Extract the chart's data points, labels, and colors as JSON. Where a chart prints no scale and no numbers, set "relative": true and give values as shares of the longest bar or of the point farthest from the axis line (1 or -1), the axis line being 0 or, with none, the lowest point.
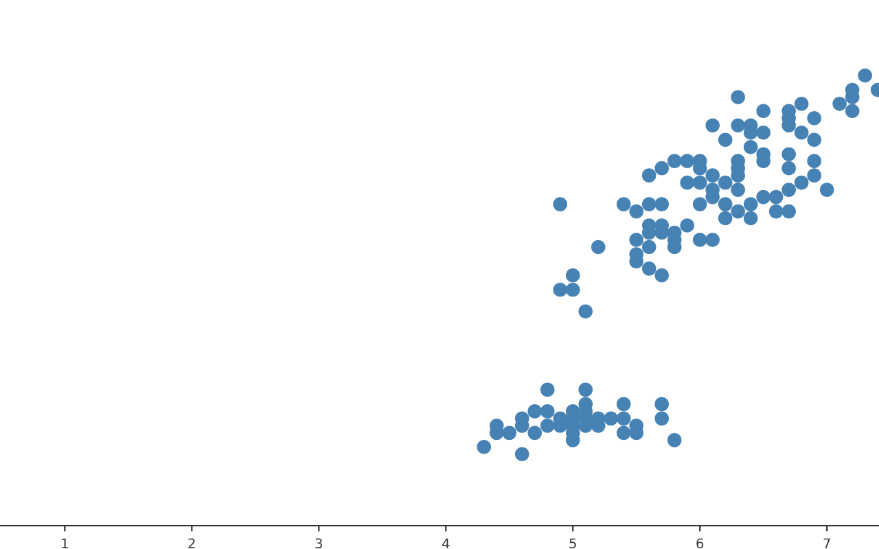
{
  "chart_data": {
    "type": "scatter",
    "relative": true,
    "color": "#4682b4",
    "marker": "circle",
    "tick_labels": "x",
    "grid": false,
    "legend": false,
    "xlim": [
      0.49,
      7.41
    ],
    "xticks": [
      1,
      2,
      3,
      4,
      5,
      6,
      7
    ],
    "x": [
      5.1,
      4.9,
      4.7,
      4.6,
      5.0,
      5.4,
      4.6,
      5.0,
      4.4,
      4.9,
      5.4,
      4.8,
      4.8,
      4.3,
      5.8,
      5.7,
      5.4,
      5.7,
      5.1,
      4.6,
      5.1,
      4.8,
      5.0,
      5.2,
      5.2,
      4.7,
      5.5,
      5.0,
      5.5,
      4.4,
      5.0,
      4.5,
      5.1,
      5.1,
      5.3,
      7.0,
      6.4,
      6.9,
      5.5,
      6.5,
      5.7,
      6.3,
      4.9,
      6.6,
      5.2,
      5.0,
      5.9,
      6.0,
      6.1,
      5.6,
      6.7,
      5.6,
      5.8,
      6.2,
      5.6,
      5.9,
      6.1,
      6.3,
      6.4,
      6.6,
      6.8,
      6.7,
      6.0,
      5.7,
      5.5,
      5.5,
      5.8,
      6.0,
      5.4,
      6.7,
      6.3,
      5.6,
      5.5,
      6.1,
      5.8,
      5.0,
      5.6,
      5.7,
      6.2,
      5.1,
      5.7,
      6.3,
      5.8,
      7.1,
      6.3,
      6.5,
      4.9,
      7.3,
      6.7,
      7.2,
      6.5,
      6.4,
      6.8,
      5.7,
      6.5,
      6.0,
      6.9,
      5.6,
      6.7,
      7.2,
      6.2,
      6.1,
      6.4,
      7.2,
      7.4,
      6.3,
      6.1,
      6.4,
      6.0,
      6.9,
      6.7,
      6.9,
      6.8,
      6.7,
      6.3,
      6.5,
      6.2,
      5.9
    ],
    "values": [
      0.222,
      0.222,
      0.206,
      0.238,
      0.222,
      0.27,
      0.222,
      0.238,
      0.222,
      0.238,
      0.238,
      0.254,
      0.222,
      0.175,
      0.19,
      0.238,
      0.206,
      0.27,
      0.238,
      0.159,
      0.27,
      0.302,
      0.254,
      0.238,
      0.222,
      0.254,
      0.222,
      0.19,
      0.206,
      0.206,
      0.206,
      0.206,
      0.302,
      0.254,
      0.238,
      0.746,
      0.714,
      0.778,
      0.635,
      0.73,
      0.714,
      0.746,
      0.524,
      0.73,
      0.619,
      0.556,
      0.667,
      0.635,
      0.746,
      0.571,
      0.698,
      0.714,
      0.651,
      0.714,
      0.619,
      0.762,
      0.635,
      0.778,
      0.683,
      0.698,
      0.762,
      0.794,
      0.714,
      0.556,
      0.603,
      0.587,
      0.619,
      0.81,
      0.714,
      0.746,
      0.698,
      0.651,
      0.698,
      0.73,
      0.635,
      0.524,
      0.667,
      0.667,
      0.683,
      0.476,
      0.651,
      0.952,
      0.81,
      0.937,
      0.889,
      0.921,
      0.714,
      1.0,
      0.921,
      0.968,
      0.81,
      0.841,
      0.873,
      0.794,
      0.873,
      0.794,
      0.905,
      0.778,
      0.905,
      0.952,
      0.762,
      0.778,
      0.889,
      0.921,
      0.968,
      0.81,
      0.889,
      0.873,
      0.762,
      0.857,
      0.889,
      0.81,
      0.937,
      0.825,
      0.794,
      0.825,
      0.857,
      0.81
    ]
  }
}
